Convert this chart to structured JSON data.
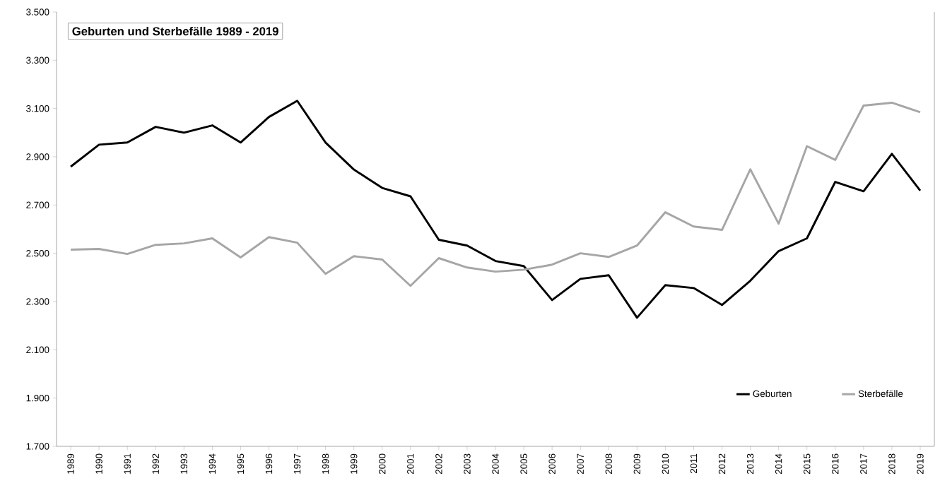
{
  "chart_data": {
    "type": "line",
    "title": "Geburten und Sterbefälle 1989 - 2019",
    "categories": [
      "1989",
      "1990",
      "1991",
      "1992",
      "1993",
      "1994",
      "1995",
      "1996",
      "1997",
      "1998",
      "1999",
      "2000",
      "2001",
      "2002",
      "2003",
      "2004",
      "2005",
      "2006",
      "2007",
      "2008",
      "2009",
      "2010",
      "2011",
      "2012",
      "2013",
      "2014",
      "2015",
      "2016",
      "2017",
      "2018",
      "2019"
    ],
    "series": [
      {
        "name": "Geburten",
        "color": "#000000",
        "values": [
          2859,
          2950,
          2959,
          3024,
          3000,
          3030,
          2959,
          3065,
          3132,
          2959,
          2847,
          2771,
          2736,
          2556,
          2532,
          2468,
          2447,
          2306,
          2394,
          2409,
          2233,
          2368,
          2356,
          2286,
          2386,
          2509,
          2562,
          2796,
          2757,
          2912,
          2760
        ]
      },
      {
        "name": "Sterbefälle",
        "color": "#a6a6a6",
        "values": [
          2515,
          2518,
          2497,
          2535,
          2541,
          2562,
          2483,
          2567,
          2544,
          2415,
          2488,
          2474,
          2365,
          2480,
          2441,
          2424,
          2432,
          2453,
          2500,
          2485,
          2532,
          2670,
          2611,
          2597,
          2848,
          2623,
          2944,
          2887,
          3112,
          3124,
          3085
        ]
      }
    ],
    "ylim": [
      1700,
      3500
    ],
    "yticks": [
      {
        "value": 1700,
        "label": "1.700"
      },
      {
        "value": 1900,
        "label": "1.900"
      },
      {
        "value": 2100,
        "label": "2.100"
      },
      {
        "value": 2300,
        "label": "2.300"
      },
      {
        "value": 2500,
        "label": "2.500"
      },
      {
        "value": 2700,
        "label": "2.700"
      },
      {
        "value": 2900,
        "label": "2.900"
      },
      {
        "value": 3100,
        "label": "3.100"
      },
      {
        "value": 3300,
        "label": "3.300"
      },
      {
        "value": 3500,
        "label": "3.500"
      }
    ],
    "legend": "bottom right",
    "grid": false,
    "marker": "none",
    "line_style": "solid"
  }
}
